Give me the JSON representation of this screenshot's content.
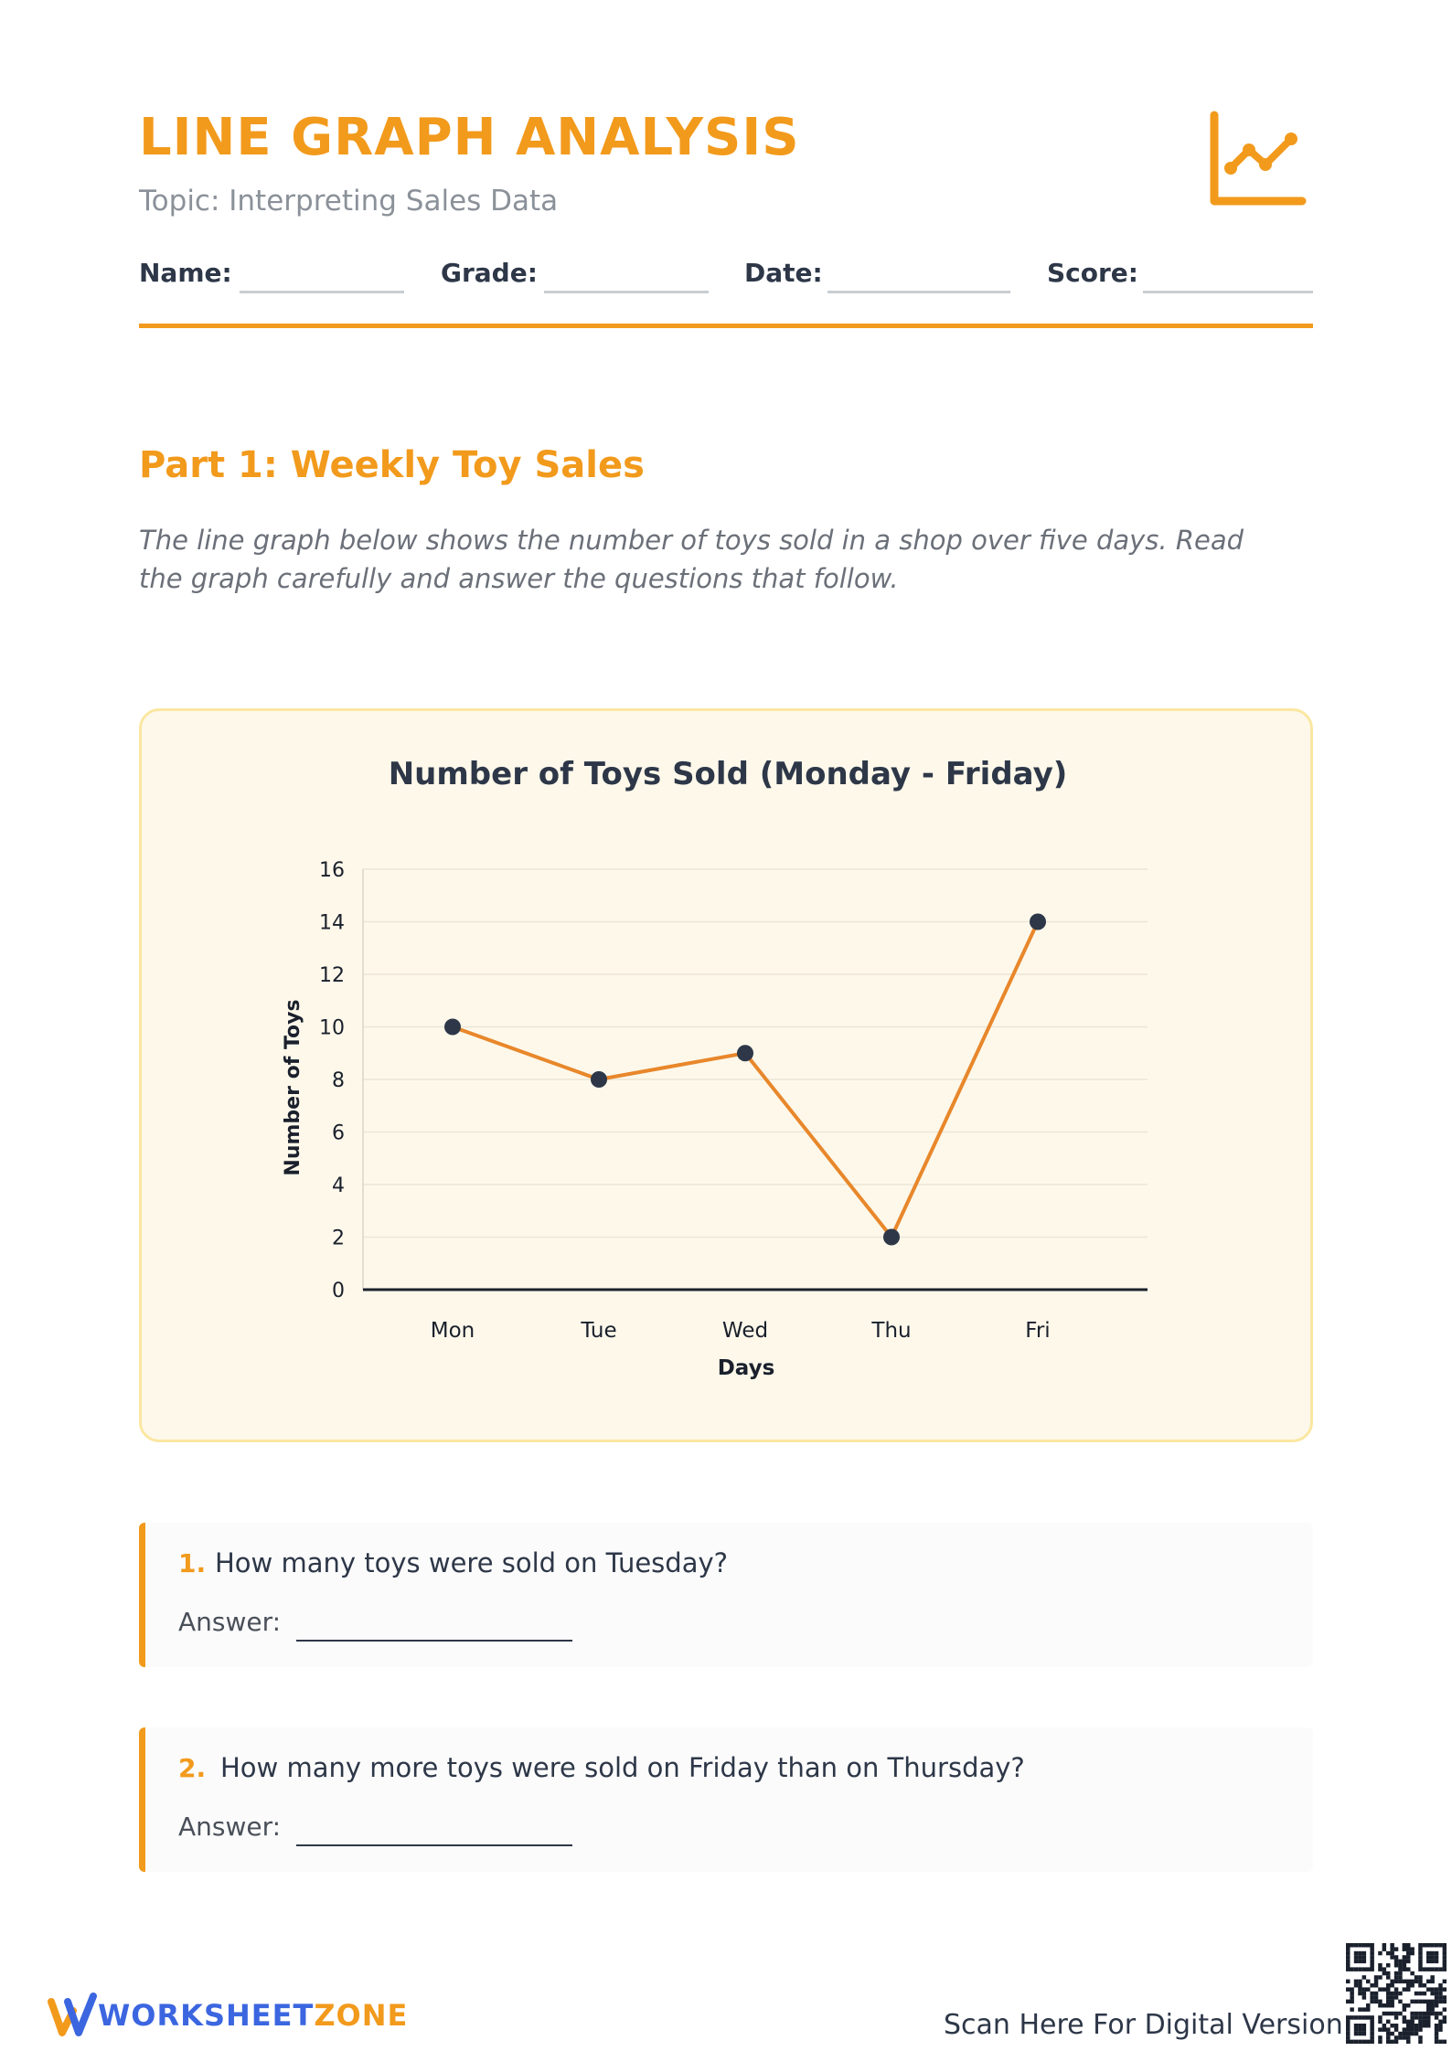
{
  "header": {
    "title": "LINE GRAPH ANALYSIS",
    "subtitle": "Topic: Interpreting Sales Data",
    "icon": "line-chart-icon",
    "accent_color": "#f29a1c"
  },
  "fields": {
    "name": "Name:",
    "grade": "Grade:",
    "date": "Date:",
    "score": "Score:"
  },
  "part1": {
    "title": "Part 1: Weekly Toy Sales",
    "intro": "The line graph below shows the number of toys sold in a shop over five days. Read the graph carefully and answer the questions that follow."
  },
  "chart_data": {
    "type": "line",
    "title": "Number of Toys Sold (Monday - Friday)",
    "xlabel": "Days",
    "ylabel": "Number of Toys",
    "categories": [
      "Mon",
      "Tue",
      "Wed",
      "Thu",
      "Fri"
    ],
    "values": [
      10,
      8,
      9,
      2,
      14
    ],
    "ylim": [
      0,
      16
    ],
    "yticks": [
      0,
      2,
      4,
      6,
      8,
      10,
      12,
      14,
      16
    ],
    "grid": true,
    "line_color": "#e8872b",
    "marker_color": "#2d3748"
  },
  "questions": [
    {
      "number": "1.",
      "text": "How many toys were sold on Tuesday?",
      "answer_label": "Answer:"
    },
    {
      "number": "2.",
      "text": "How many more toys were sold on Friday than on Thursday?",
      "answer_label": "Answer:"
    }
  ],
  "footer": {
    "brand_part1": "WORKSHEET",
    "brand_part2": "ZONE",
    "scan_text": "Scan Here For Digital Version",
    "logo_icon": "worksheetzone-logo-icon",
    "qr_icon": "qr-code-icon"
  }
}
